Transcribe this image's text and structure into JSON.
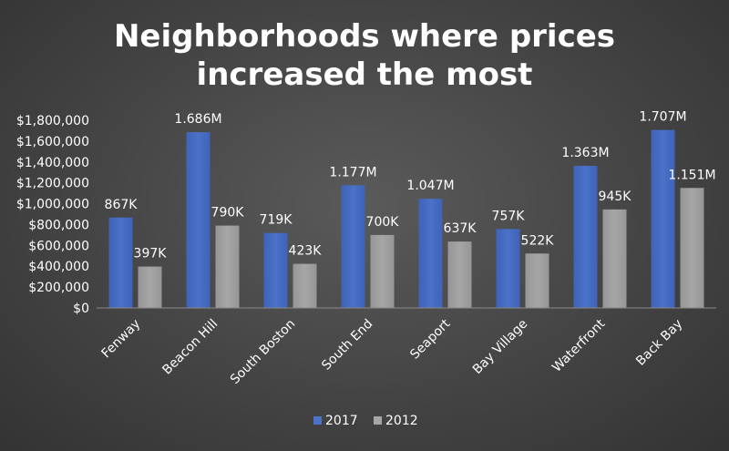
{
  "chart_data": {
    "type": "bar",
    "title_lines": [
      "Neighborhoods where prices",
      "increased the most"
    ],
    "categories": [
      "Fenway",
      "Beacon Hill",
      "South Boston",
      "South End",
      "Seaport",
      "Bay Village",
      "Waterfront",
      "Back Bay"
    ],
    "series": [
      {
        "name": "2017",
        "color": "#4a72c8",
        "values": [
          867000,
          1686000,
          719000,
          1177000,
          1047000,
          757000,
          1363000,
          1707000
        ],
        "labels": [
          "867K",
          "1.686M",
          "719K",
          "1.177M",
          "1.047M",
          "757K",
          "1.363M",
          "1.707M"
        ]
      },
      {
        "name": "2012",
        "color": "#a6a6a6",
        "values": [
          397000,
          790000,
          423000,
          700000,
          637000,
          522000,
          945000,
          1151000
        ],
        "labels": [
          "397K",
          "790K",
          "423K",
          "700K",
          "637K",
          "522K",
          "945K",
          "1.151M"
        ]
      }
    ],
    "ylim": [
      0,
      1800000
    ],
    "yticks": [
      0,
      200000,
      400000,
      600000,
      800000,
      1000000,
      1200000,
      1400000,
      1600000,
      1800000
    ],
    "ytick_labels": [
      "$0",
      "$200,000",
      "$400,000",
      "$600,000",
      "$800,000",
      "$1,000,000",
      "$1,200,000",
      "$1,400,000",
      "$1,600,000",
      "$1,800,000"
    ],
    "legend_position": "bottom",
    "grid": false
  }
}
